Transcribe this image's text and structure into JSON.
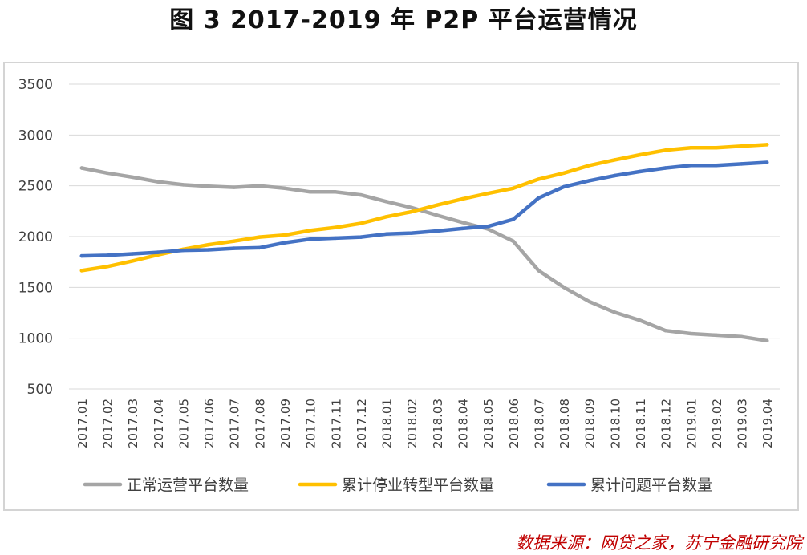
{
  "figure": {
    "title": "图 3 2017-2019 年 P2P 平台运营情况",
    "source": "数据来源：网贷之家，苏宁金融研究院"
  },
  "chart_data": {
    "type": "line",
    "title": "图 3 2017-2019 年 P2P 平台运营情况",
    "xlabel": "",
    "ylabel": "",
    "ylim": [
      500,
      3500
    ],
    "yticks": [
      500,
      1000,
      1500,
      2000,
      2500,
      3000,
      3500
    ],
    "grid": true,
    "legend_position": "bottom",
    "categories": [
      "2017.01",
      "2017.02",
      "2017.03",
      "2017.04",
      "2017.05",
      "2017.06",
      "2017.07",
      "2017.08",
      "2017.09",
      "2017.10",
      "2017.11",
      "2017.12",
      "2018.01",
      "2018.02",
      "2018.03",
      "2018.04",
      "2018.05",
      "2018.06",
      "2018.07",
      "2018.08",
      "2018.09",
      "2018.10",
      "2018.11",
      "2018.12",
      "2019.01",
      "2019.02",
      "2019.03",
      "2019.04"
    ],
    "series": [
      {
        "name": "正常运营平台数量",
        "color": "#a5a5a5",
        "values": [
          2675,
          2625,
          2585,
          2540,
          2510,
          2495,
          2485,
          2500,
          2475,
          2440,
          2440,
          2410,
          2345,
          2285,
          2210,
          2140,
          2075,
          1955,
          1665,
          1500,
          1360,
          1255,
          1175,
          1075,
          1045,
          1030,
          1015,
          975
        ]
      },
      {
        "name": "累计停业转型平台数量",
        "color": "#ffc000",
        "values": [
          1665,
          1705,
          1760,
          1820,
          1875,
          1920,
          1955,
          1995,
          2015,
          2060,
          2090,
          2130,
          2195,
          2245,
          2310,
          2370,
          2425,
          2475,
          2565,
          2625,
          2700,
          2755,
          2805,
          2850,
          2875,
          2875,
          2890,
          2905
        ]
      },
      {
        "name": "累计问题平台数量",
        "color": "#4472c4",
        "values": [
          1810,
          1815,
          1830,
          1845,
          1865,
          1870,
          1885,
          1890,
          1940,
          1975,
          1985,
          1995,
          2025,
          2035,
          2055,
          2080,
          2100,
          2170,
          2380,
          2490,
          2550,
          2600,
          2640,
          2675,
          2700,
          2700,
          2715,
          2730
        ]
      }
    ]
  }
}
